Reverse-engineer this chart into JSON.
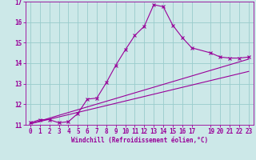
{
  "xlabel": "Windchill (Refroidissement éolien,°C)",
  "bg_color": "#cce8e8",
  "line_color": "#990099",
  "grid_color": "#99cccc",
  "xlim": [
    -0.5,
    23.5
  ],
  "ylim": [
    11.0,
    17.0
  ],
  "yticks": [
    11,
    12,
    13,
    14,
    15,
    16,
    17
  ],
  "xticks": [
    0,
    1,
    2,
    3,
    4,
    5,
    6,
    7,
    8,
    9,
    10,
    11,
    12,
    13,
    14,
    15,
    16,
    17,
    19,
    20,
    21,
    22,
    23
  ],
  "line1_x": [
    0,
    1,
    2,
    3,
    4,
    5,
    6,
    7,
    8,
    9,
    10,
    11,
    12,
    13,
    14,
    15,
    16,
    17,
    19,
    20,
    21,
    22,
    23
  ],
  "line1_y": [
    11.1,
    11.25,
    11.25,
    11.1,
    11.15,
    11.55,
    12.25,
    12.3,
    13.05,
    13.9,
    14.65,
    15.35,
    15.8,
    16.85,
    16.75,
    15.85,
    15.25,
    14.75,
    14.5,
    14.3,
    14.25,
    14.25,
    14.3
  ],
  "line2_x": [
    0,
    23
  ],
  "line2_y": [
    11.05,
    14.2
  ],
  "line3_x": [
    0,
    23
  ],
  "line3_y": [
    11.05,
    13.6
  ],
  "marker": "x",
  "linewidth": 0.8,
  "markersize": 3.5,
  "xlabel_fontsize": 5.5,
  "tick_fontsize": 5.5
}
